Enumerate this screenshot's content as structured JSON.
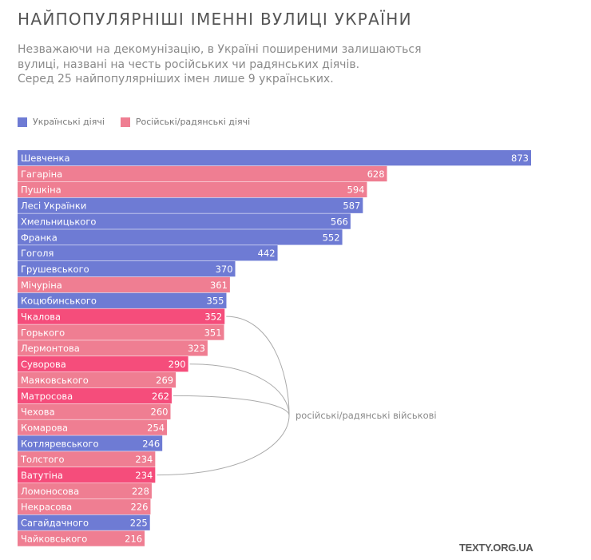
{
  "header": {
    "title": "НАЙПОПУЛЯРНІШІ ІМЕННІ ВУЛИЦІ УКРАЇНИ",
    "subtitle_lines": [
      "Незважаючи на декомунізацію, в Україні поширеними залишаються",
      "вулиці, названі на честь російських чи радянських діячів.",
      "Серед 25 найпопулярніших імен лише 9 українських."
    ]
  },
  "legend": {
    "ukrainian_label": "Українські діячі",
    "russian_label": "Російські/радянські діячі"
  },
  "colors": {
    "ukrainian": "#6e7bd4",
    "russian": "#ef7e92",
    "military": "#f54d7b",
    "annotation_line": "#aaaaaa"
  },
  "footer": {
    "brand": "TEXTY.ORG.UA"
  },
  "chart_data": {
    "type": "bar",
    "orientation": "horizontal",
    "title": "НАЙПОПУЛЯРНІШІ ІМЕННІ ВУЛИЦІ УКРАЇНИ",
    "xlabel": "",
    "ylabel": "",
    "xlim": [
      0,
      873
    ],
    "grid": false,
    "legend_position": "top-left",
    "categories": [
      "Шевченка",
      "Гагаріна",
      "Пушкіна",
      "Лесі Українки",
      "Хмельницького",
      "Франка",
      "Гоголя",
      "Грушевського",
      "Мічуріна",
      "Коцюбинського",
      "Чкалова",
      "Горького",
      "Лермонтова",
      "Суворова",
      "Маяковського",
      "Матросова",
      "Чехова",
      "Комарова",
      "Котляревського",
      "Толстого",
      "Ватутіна",
      "Ломоносова",
      "Некрасова",
      "Сагайдачного",
      "Чайковського"
    ],
    "values": [
      873,
      628,
      594,
      587,
      566,
      552,
      442,
      370,
      361,
      355,
      352,
      351,
      323,
      290,
      269,
      262,
      260,
      254,
      246,
      234,
      234,
      228,
      226,
      225,
      216
    ],
    "groups": [
      "ukrainian",
      "russian",
      "russian",
      "ukrainian",
      "ukrainian",
      "ukrainian",
      "ukrainian",
      "ukrainian",
      "russian",
      "ukrainian",
      "military",
      "russian",
      "russian",
      "military",
      "russian",
      "military",
      "russian",
      "russian",
      "ukrainian",
      "russian",
      "military",
      "russian",
      "russian",
      "ukrainian",
      "russian"
    ],
    "series": [
      {
        "name": "Українські діячі",
        "key": "ukrainian"
      },
      {
        "name": "Російські/радянські діячі",
        "key": "russian"
      }
    ],
    "annotation": {
      "text": "російські/радянські військові",
      "targets": [
        "Чкалова",
        "Суворова",
        "Матросова",
        "Ватутіна"
      ]
    }
  }
}
